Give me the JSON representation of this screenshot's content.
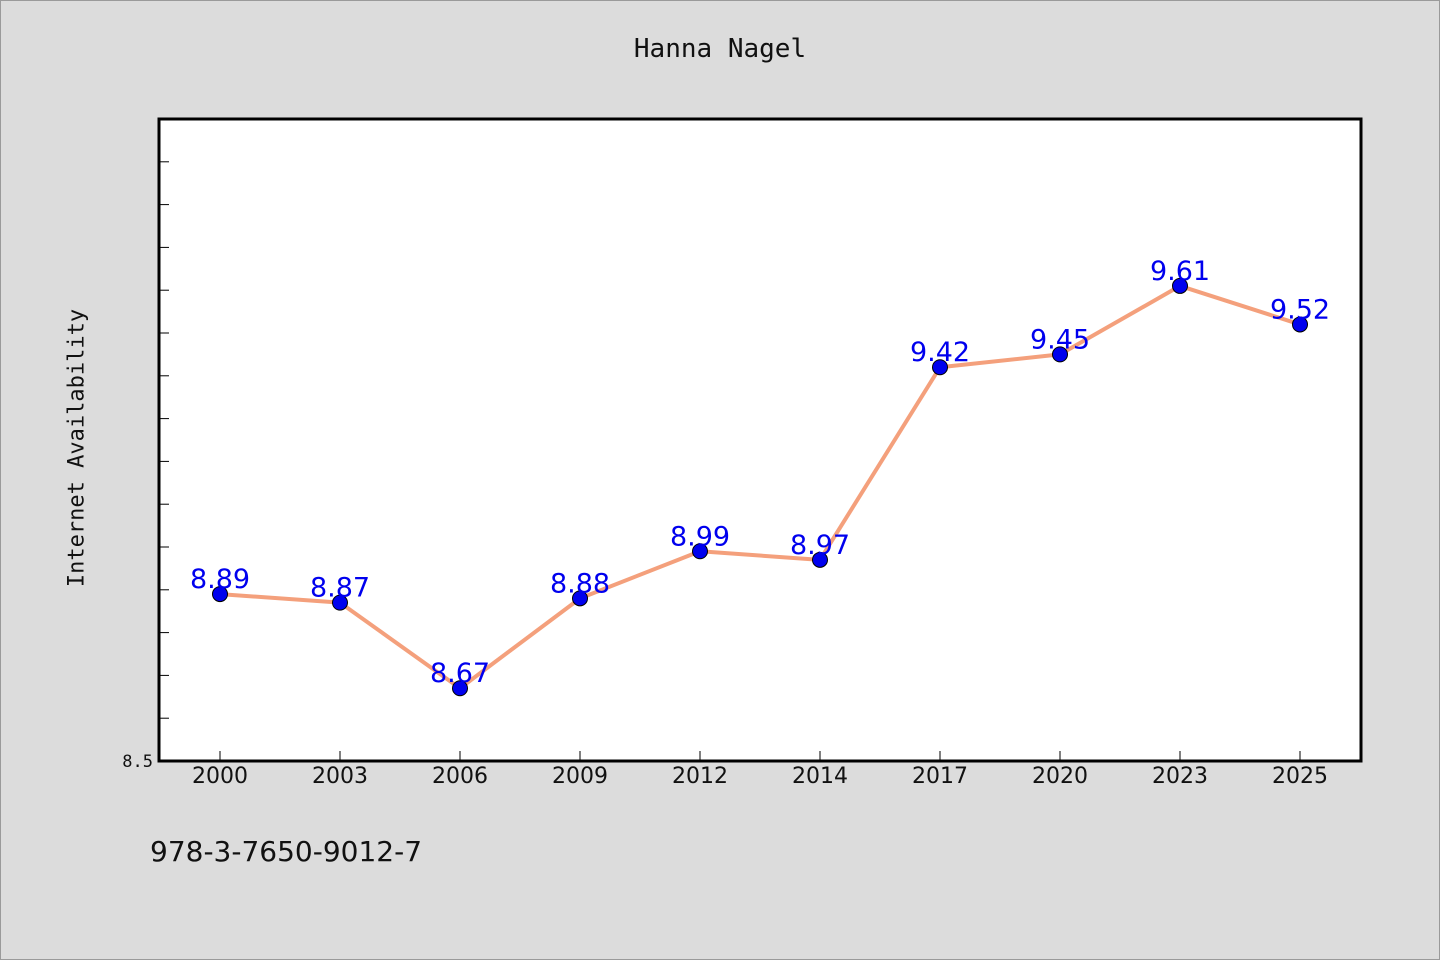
{
  "page": {
    "author": "Hanna Nagel",
    "isbn": "978-3-7650-9012-7"
  },
  "chart_data": {
    "type": "line",
    "title": "",
    "xlabel": "",
    "ylabel": "Internet Availability",
    "x": [
      "2000",
      "2003",
      "2006",
      "2009",
      "2012",
      "2014",
      "2017",
      "2020",
      "2023",
      "2025"
    ],
    "series": [
      {
        "values": [
          8.89,
          8.87,
          8.67,
          8.88,
          8.99,
          8.97,
          9.42,
          9.45,
          9.61,
          9.52
        ],
        "data_labels": [
          "8.89",
          "8.87",
          "8.67",
          "8.88",
          "8.99",
          "8.97",
          "9.42",
          "9.45",
          "9.61",
          "9.52"
        ],
        "line_color": "#f4a07c",
        "marker_color": "#0000ee"
      }
    ],
    "ylim": [
      8.5,
      10.0
    ],
    "y_minor_step": 0.1,
    "y_tick_labels": [
      "8.5"
    ],
    "grid": false,
    "legend": "none"
  }
}
